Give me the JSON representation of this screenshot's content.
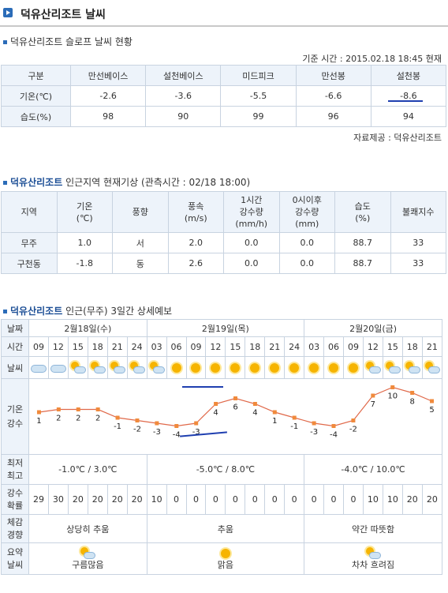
{
  "title": "덕유산리조트 날씨",
  "slope": {
    "heading": "덕유산리조트 슬로프 날씨 현황",
    "timestamp": "기준 시간 : 2015.02.18 18:45 현재",
    "headers": [
      "구분",
      "만선베이스",
      "설천베이스",
      "미드피크",
      "만선봉",
      "설천봉"
    ],
    "rows": [
      [
        "기온(℃)",
        "-2.6",
        "-3.6",
        "-5.5",
        "-6.6",
        "-8.6"
      ],
      [
        "습도(%)",
        "98",
        "90",
        "99",
        "96",
        "94"
      ]
    ],
    "source": "자료제공 : 덕유산리조트"
  },
  "nearby": {
    "heading_bold": "덕유산리조트",
    "heading_rest": " 인근지역 현재기상 (관측시간 : 02/18 18:00)",
    "headers": [
      "지역",
      "기온\n(℃)",
      "풍향",
      "풍속\n(m/s)",
      "1시간\n강수량\n(mm/h)",
      "0시이후\n강수량\n(mm)",
      "습도\n(%)",
      "불쾌지수"
    ],
    "rows": [
      [
        "무주",
        "1.0",
        "서",
        "2.0",
        "0.0",
        "0.0",
        "88.7",
        "33"
      ],
      [
        "구천동",
        "-1.8",
        "동",
        "2.6",
        "0.0",
        "0.0",
        "88.7",
        "33"
      ]
    ]
  },
  "forecast": {
    "heading_bold": "덕유산리조트",
    "heading_rest": " 인근(무주) 3일간 상세예보",
    "labels": {
      "date": "날짜",
      "time": "시간",
      "weather": "날씨",
      "temp1": "기온",
      "temp2": "강수",
      "minmax1": "최저",
      "minmax2": "최고",
      "pop1": "강수",
      "pop2": "확률",
      "feel1": "체감",
      "feel2": "경향",
      "sum1": "요약",
      "sum2": "날씨"
    },
    "days": [
      {
        "date": "2월18일(수)",
        "span": 6,
        "minmax": "-1.0℃ / 3.0℃",
        "feel": "상당히 추움",
        "summary": "구름많음",
        "summary_icon": "partly-cloudy-icon"
      },
      {
        "date": "2월19일(목)",
        "span": 8,
        "minmax": "-5.0℃ / 8.0℃",
        "feel": "추움",
        "summary": "맑음",
        "summary_icon": "sun-icon"
      },
      {
        "date": "2월20일(금)",
        "span": 7,
        "minmax": "-4.0℃ / 10.0℃",
        "feel": "약간 따뜻함",
        "summary": "차차 흐려짐",
        "summary_icon": "partly-cloudy-icon"
      }
    ],
    "times": [
      "09",
      "12",
      "15",
      "18",
      "21",
      "24",
      "03",
      "06",
      "09",
      "12",
      "15",
      "18",
      "21",
      "24",
      "03",
      "06",
      "09",
      "12",
      "15",
      "18",
      "21"
    ],
    "weather": [
      "cloudy",
      "cloudy",
      "partly-cloudy",
      "partly-cloudy",
      "partly-cloudy",
      "partly-cloudy",
      "partly-cloudy",
      "sunny",
      "sunny",
      "sunny",
      "sunny",
      "sunny",
      "sunny",
      "sunny",
      "sunny",
      "sunny",
      "sunny",
      "partly-cloudy",
      "partly-cloudy",
      "partly-cloudy",
      "partly-cloudy"
    ],
    "pop": [
      "29",
      "30",
      "20",
      "20",
      "20",
      "20",
      "10",
      "0",
      "0",
      "0",
      "0",
      "0",
      "0",
      "0",
      "0",
      "0",
      "0",
      "10",
      "10",
      "20",
      "20"
    ]
  },
  "chart_data": {
    "type": "line",
    "x": [
      "09",
      "12",
      "15",
      "18",
      "21",
      "24",
      "03",
      "06",
      "09",
      "12",
      "15",
      "18",
      "21",
      "24",
      "03",
      "06",
      "09",
      "12",
      "15",
      "18",
      "21"
    ],
    "values": [
      1,
      2,
      2,
      2,
      -1,
      -2,
      -3,
      -4,
      -3,
      4,
      6,
      4,
      1,
      -1,
      -3,
      -4,
      -2,
      7,
      10,
      8,
      5
    ],
    "labels": [
      "1",
      "2",
      "2",
      "2",
      "-1",
      "-2",
      "-3",
      "-4",
      "-3",
      "4",
      "6",
      "4",
      "1",
      "-1",
      "-3",
      "-4",
      "-2",
      "7",
      "10",
      "8",
      "5"
    ],
    "line_color": "#e0694a",
    "point_color": "#f08a3c",
    "ylim": [
      -5,
      11
    ]
  }
}
